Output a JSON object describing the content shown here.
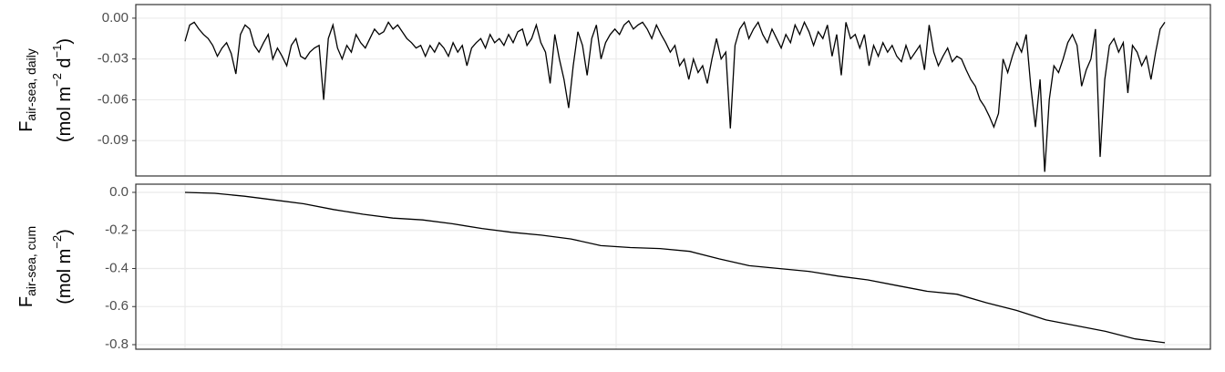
{
  "chart_data": [
    {
      "type": "line",
      "ylabel": {
        "symbol": "F",
        "subscript": "air-sea, daily",
        "unit": [
          "(mol m",
          "−2",
          " d",
          "−1",
          ")"
        ]
      },
      "ylim": [
        -0.116,
        0.01
      ],
      "yticks": [
        {
          "value": 0,
          "label": "0.00"
        },
        -0.03,
        -0.06,
        -0.09
      ],
      "grid": true,
      "color": "#000000",
      "values": [
        -0.017,
        -0.005,
        -0.003,
        -0.008,
        -0.012,
        -0.015,
        -0.02,
        -0.028,
        -0.022,
        -0.018,
        -0.026,
        -0.041,
        -0.012,
        -0.005,
        -0.008,
        -0.02,
        -0.025,
        -0.018,
        -0.012,
        -0.03,
        -0.022,
        -0.028,
        -0.035,
        -0.02,
        -0.015,
        -0.028,
        -0.03,
        -0.025,
        -0.022,
        -0.02,
        -0.06,
        -0.015,
        -0.005,
        -0.022,
        -0.03,
        -0.02,
        -0.025,
        -0.012,
        -0.018,
        -0.022,
        -0.015,
        -0.008,
        -0.012,
        -0.01,
        -0.003,
        -0.008,
        -0.005,
        -0.01,
        -0.015,
        -0.018,
        -0.022,
        -0.02,
        -0.028,
        -0.02,
        -0.025,
        -0.018,
        -0.022,
        -0.028,
        -0.018,
        -0.025,
        -0.02,
        -0.035,
        -0.022,
        -0.018,
        -0.015,
        -0.022,
        -0.012,
        -0.018,
        -0.015,
        -0.02,
        -0.012,
        -0.018,
        -0.01,
        -0.008,
        -0.02,
        -0.015,
        -0.005,
        -0.018,
        -0.025,
        -0.048,
        -0.012,
        -0.03,
        -0.045,
        -0.066,
        -0.035,
        -0.01,
        -0.02,
        -0.042,
        -0.015,
        -0.005,
        -0.03,
        -0.018,
        -0.012,
        -0.008,
        -0.012,
        -0.005,
        -0.002,
        -0.008,
        -0.005,
        -0.003,
        -0.008,
        -0.015,
        -0.005,
        -0.012,
        -0.018,
        -0.025,
        -0.02,
        -0.035,
        -0.03,
        -0.045,
        -0.03,
        -0.04,
        -0.035,
        -0.048,
        -0.03,
        -0.015,
        -0.03,
        -0.025,
        -0.081,
        -0.02,
        -0.008,
        -0.003,
        -0.015,
        -0.008,
        -0.003,
        -0.012,
        -0.018,
        -0.008,
        -0.015,
        -0.022,
        -0.012,
        -0.018,
        -0.005,
        -0.012,
        -0.003,
        -0.01,
        -0.02,
        -0.01,
        -0.015,
        -0.005,
        -0.028,
        -0.012,
        -0.042,
        -0.003,
        -0.015,
        -0.012,
        -0.022,
        -0.012,
        -0.035,
        -0.02,
        -0.028,
        -0.018,
        -0.025,
        -0.02,
        -0.028,
        -0.032,
        -0.02,
        -0.03,
        -0.025,
        -0.02,
        -0.038,
        -0.005,
        -0.025,
        -0.035,
        -0.028,
        -0.022,
        -0.032,
        -0.028,
        -0.03,
        -0.038,
        -0.045,
        -0.05,
        -0.06,
        -0.065,
        -0.072,
        -0.08,
        -0.07,
        -0.03,
        -0.04,
        -0.028,
        -0.018,
        -0.025,
        -0.012,
        -0.05,
        -0.08,
        -0.045,
        -0.113,
        -0.06,
        -0.035,
        -0.04,
        -0.03,
        -0.018,
        -0.012,
        -0.02,
        -0.05,
        -0.038,
        -0.03,
        -0.008,
        -0.102,
        -0.045,
        -0.02,
        -0.015,
        -0.025,
        -0.018,
        -0.055,
        -0.02,
        -0.025,
        -0.035,
        -0.028,
        -0.045,
        -0.025,
        -0.008,
        -0.003
      ]
    },
    {
      "type": "line",
      "ylabel": {
        "symbol": "F",
        "subscript": "air-sea, cum",
        "unit": [
          "(mol m",
          "−2",
          ")"
        ]
      },
      "ylim": [
        -0.824,
        0.043
      ],
      "yticks": [
        {
          "value": 0,
          "label": "0.0"
        },
        -0.2,
        -0.4,
        -0.6,
        -0.8
      ],
      "grid": true,
      "color": "#000000",
      "values": [
        0,
        -0.005,
        -0.02,
        -0.04,
        -0.06,
        -0.09,
        -0.115,
        -0.135,
        -0.145,
        -0.165,
        -0.19,
        -0.21,
        -0.225,
        -0.245,
        -0.28,
        -0.29,
        -0.295,
        -0.31,
        -0.35,
        -0.385,
        -0.4,
        -0.415,
        -0.44,
        -0.46,
        -0.49,
        -0.52,
        -0.535,
        -0.58,
        -0.62,
        -0.67,
        -0.7,
        -0.73,
        -0.77,
        -0.79
      ]
    }
  ]
}
